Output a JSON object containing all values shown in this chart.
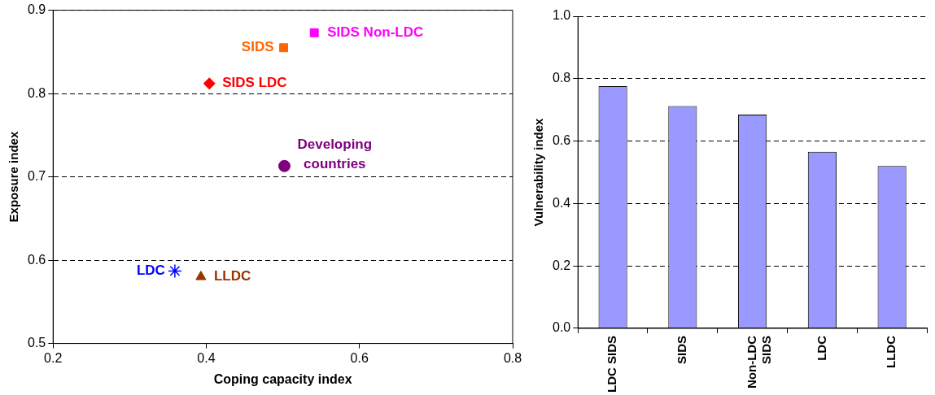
{
  "chart_data": [
    {
      "type": "scatter",
      "xlabel": "Coping capacity index",
      "ylabel": "Exposure index",
      "xlim": [
        0.2,
        0.8
      ],
      "xticks": [
        0.2,
        0.4,
        0.6,
        0.8
      ],
      "ylim": [
        0.5,
        0.9
      ],
      "yticks": [
        0.5,
        0.6,
        0.7,
        0.8,
        0.9
      ],
      "grid": "y",
      "line_style": "dashed",
      "series": [
        {
          "name": "SIDS LDC",
          "color": "#ff0000",
          "marker": "diamond",
          "x": [
            0.404
          ],
          "values": [
            0.812
          ]
        },
        {
          "name": "SIDS",
          "color": "#ff6600",
          "marker": "square",
          "x": [
            0.501
          ],
          "values": [
            0.855
          ]
        },
        {
          "name": "SIDS Non-LDC",
          "color": "#ff00ff",
          "marker": "square",
          "x": [
            0.541
          ],
          "values": [
            0.873
          ]
        },
        {
          "name": "Developing countries",
          "color": "#800080",
          "marker": "circle",
          "x": [
            0.502
          ],
          "values": [
            0.713
          ]
        },
        {
          "name": "LDC",
          "color": "#0000ff",
          "marker": "cross",
          "x": [
            0.359
          ],
          "values": [
            0.587
          ]
        },
        {
          "name": "LLDC",
          "color": "#993300",
          "marker": "triangle",
          "x": [
            0.393
          ],
          "values": [
            0.58
          ]
        }
      ]
    },
    {
      "type": "bar",
      "ylabel": "Vulnerability index",
      "categories": [
        "LDC SIDS",
        "SIDS",
        "Non-LDC SIDS",
        "LDC",
        "LLDC"
      ],
      "values": [
        0.776,
        0.712,
        0.685,
        0.566,
        0.52
      ],
      "color": "#9999ff",
      "ylim": [
        0,
        1
      ],
      "yticks": [
        {
          "value": 0,
          "label": "0.0"
        },
        0.2,
        0.4,
        0.6,
        0.8,
        {
          "value": 1,
          "label": "1.0"
        }
      ],
      "grid": "y",
      "line_style": "dashed"
    }
  ]
}
